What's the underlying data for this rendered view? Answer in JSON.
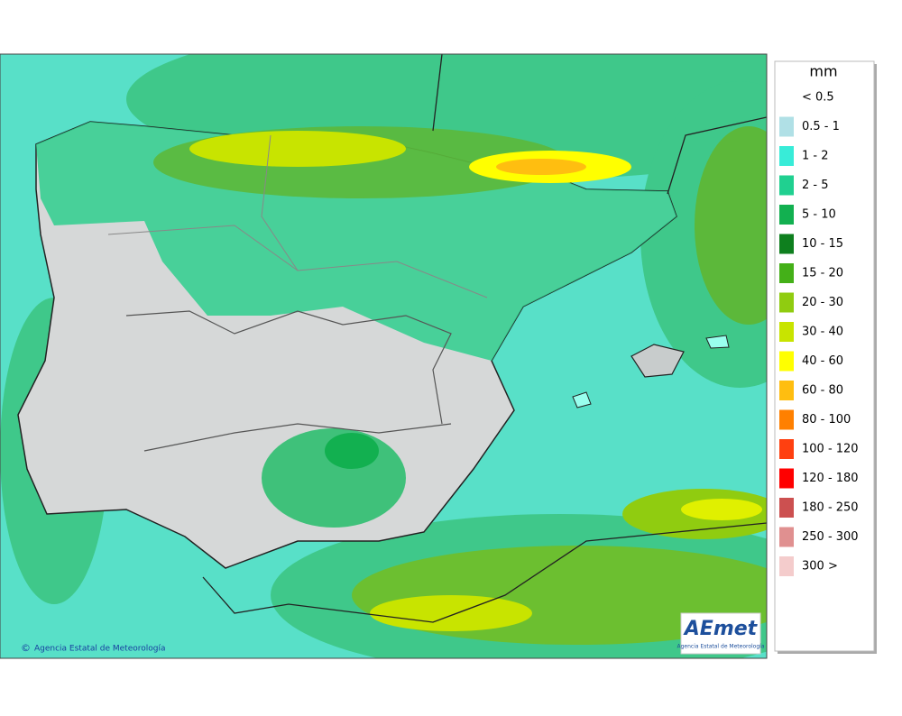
{
  "map": {
    "credit": "Agencia Estatal de Meteorología"
  },
  "logo": {
    "name": "AEmet",
    "subtitle": "Agencia Estatal de Meteorología"
  },
  "legend": {
    "unit": "mm",
    "items": [
      {
        "label": "< 0.5",
        "color": "#ffffff"
      },
      {
        "label": "0.5 - 1",
        "color": "#b0e0e6"
      },
      {
        "label": "1 - 2",
        "color": "#38ecd8"
      },
      {
        "label": "2 - 5",
        "color": "#20d090"
      },
      {
        "label": "5 - 10",
        "color": "#12b050"
      },
      {
        "label": "10 - 15",
        "color": "#0e7f1e"
      },
      {
        "label": "15 - 20",
        "color": "#44b018"
      },
      {
        "label": "20 - 30",
        "color": "#90cc10"
      },
      {
        "label": "30 - 40",
        "color": "#c8e400"
      },
      {
        "label": "40 - 60",
        "color": "#ffff00"
      },
      {
        "label": "60 - 80",
        "color": "#ffbe10"
      },
      {
        "label": "80 - 100",
        "color": "#ff8000"
      },
      {
        "label": "100 - 120",
        "color": "#ff4010"
      },
      {
        "label": "120 - 180",
        "color": "#ff0000"
      },
      {
        "label": "180 - 250",
        "color": "#cc5050"
      },
      {
        "label": "250 - 300",
        "color": "#e09090"
      },
      {
        "label": "300 >",
        "color": "#f4cccc"
      }
    ]
  }
}
